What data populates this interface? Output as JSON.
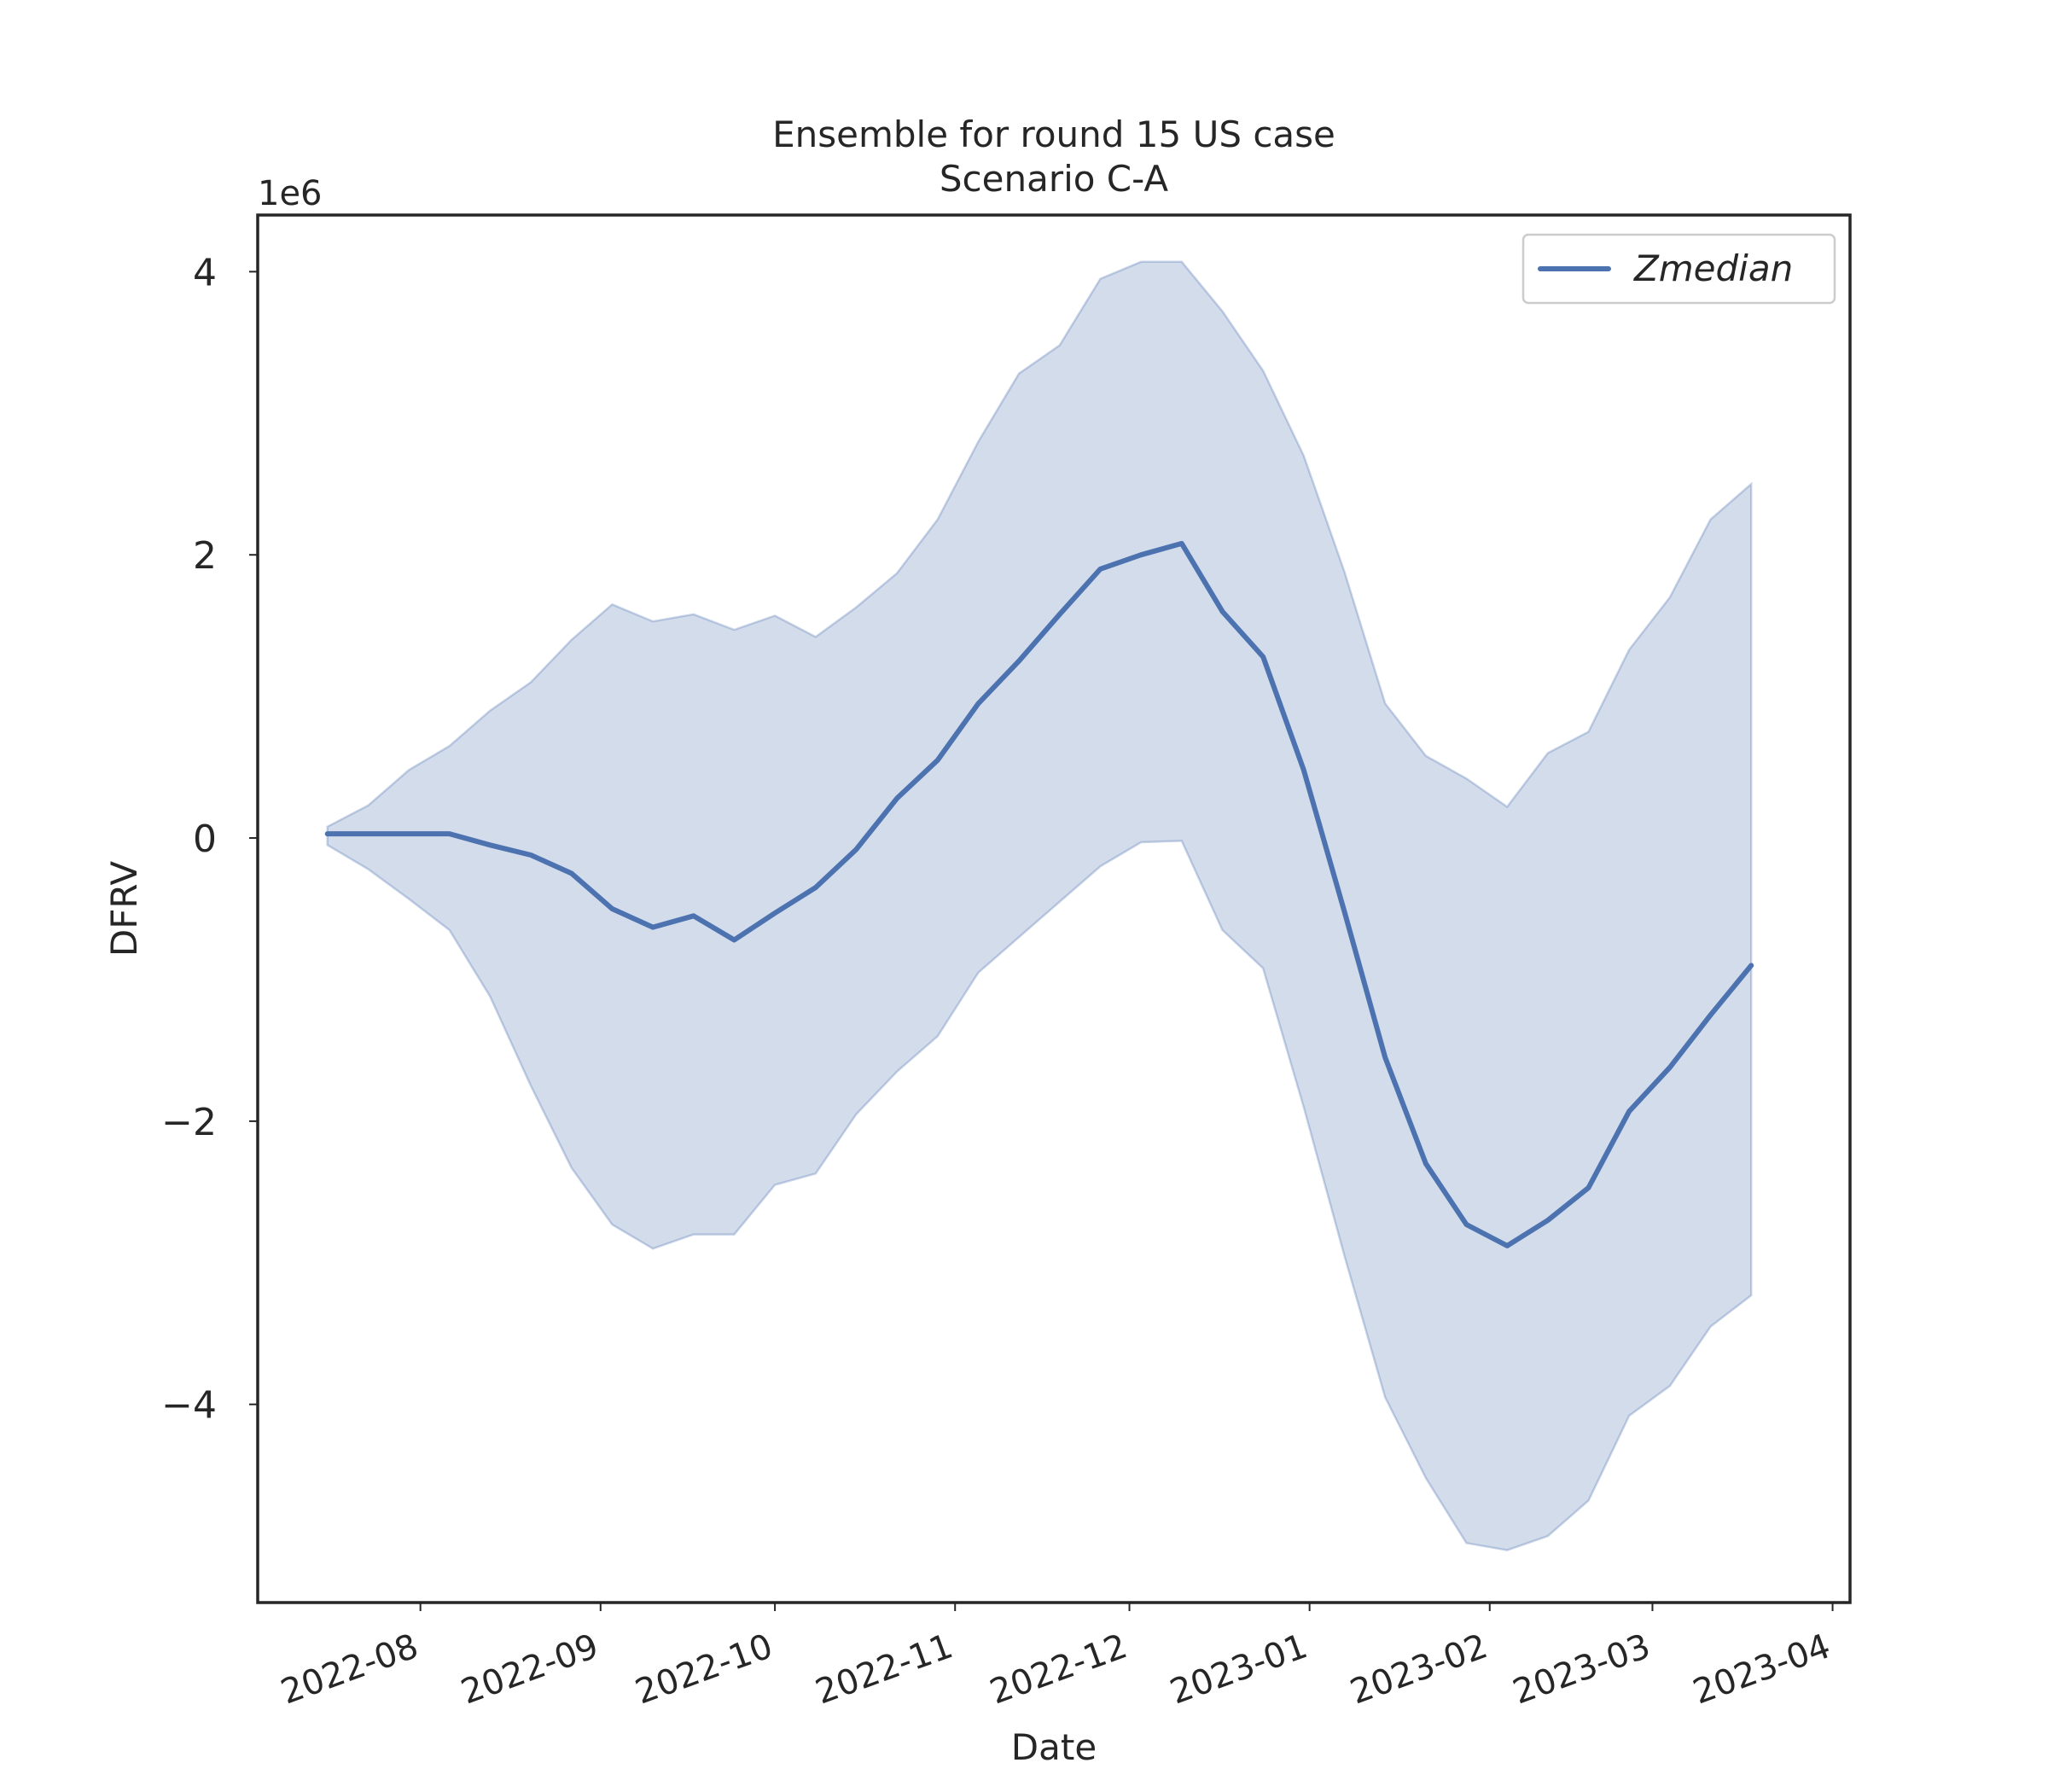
{
  "chart_data": {
    "type": "line",
    "title": "Ensemble for round 15 US case",
    "subtitle": "Scenario C-A",
    "xlabel": "Date",
    "ylabel": "DFRV",
    "y_offset_label": "1e6",
    "x_tick_labels": [
      "2022-08",
      "2022-09",
      "2022-10",
      "2022-11",
      "2022-12",
      "2023-01",
      "2023-02",
      "2023-03",
      "2023-04"
    ],
    "x_ticks": [
      "2022-08-01",
      "2022-09-01",
      "2022-10-01",
      "2022-11-01",
      "2022-12-01",
      "2023-01-01",
      "2023-02-01",
      "2023-03-01",
      "2023-04-01"
    ],
    "y_ticks": [
      -4,
      -2,
      0,
      2,
      4
    ],
    "xlim": [
      "2022-07-04",
      "2023-04-04"
    ],
    "ylim": [
      -5.4,
      4.4
    ],
    "y_scale_factor": 1000000,
    "grid": false,
    "legend_position": "top-right",
    "colors": {
      "line": "#4c72b0",
      "band": "#4c72b0"
    },
    "series": [
      {
        "name": "Zmedian",
        "x": [
          "2022-07-16",
          "2022-07-23",
          "2022-07-30",
          "2022-08-06",
          "2022-08-13",
          "2022-08-20",
          "2022-08-27",
          "2022-09-03",
          "2022-09-10",
          "2022-09-17",
          "2022-09-24",
          "2022-10-01",
          "2022-10-08",
          "2022-10-15",
          "2022-10-22",
          "2022-10-29",
          "2022-11-05",
          "2022-11-12",
          "2022-11-19",
          "2022-11-26",
          "2022-12-03",
          "2022-12-10",
          "2022-12-17",
          "2022-12-24",
          "2022-12-31",
          "2023-01-07",
          "2023-01-14",
          "2023-01-21",
          "2023-01-28",
          "2023-02-04",
          "2023-02-11",
          "2023-02-18",
          "2023-02-25",
          "2023-03-04",
          "2023-03-11",
          "2023-03-18"
        ],
        "y": [
          0.03,
          0.03,
          0.03,
          0.03,
          -0.05,
          -0.12,
          -0.25,
          -0.5,
          -0.63,
          -0.55,
          -0.72,
          -0.53,
          -0.35,
          -0.08,
          0.28,
          0.55,
          0.95,
          1.25,
          1.58,
          1.9,
          2.0,
          2.08,
          1.6,
          1.28,
          0.48,
          -0.52,
          -1.55,
          -2.3,
          -2.73,
          -2.88,
          -2.7,
          -2.47,
          -1.93,
          -1.62,
          -1.25,
          -0.9
        ],
        "lower": [
          -0.05,
          -0.22,
          -0.43,
          -0.65,
          -1.12,
          -1.75,
          -2.33,
          -2.73,
          -2.9,
          -2.8,
          -2.8,
          -2.45,
          -2.37,
          -1.95,
          -1.65,
          -1.4,
          -0.95,
          -0.7,
          -0.45,
          -0.2,
          -0.03,
          -0.02,
          -0.65,
          -0.92,
          -1.9,
          -2.95,
          -3.95,
          -4.52,
          -4.98,
          -5.03,
          -4.93,
          -4.68,
          -4.08,
          -3.87,
          -3.45,
          -3.23
        ],
        "upper": [
          0.08,
          0.23,
          0.48,
          0.65,
          0.9,
          1.1,
          1.4,
          1.65,
          1.53,
          1.58,
          1.47,
          1.57,
          1.42,
          1.63,
          1.87,
          2.25,
          2.8,
          3.28,
          3.48,
          3.95,
          4.07,
          4.07,
          3.72,
          3.3,
          2.7,
          1.88,
          0.95,
          0.58,
          0.42,
          0.22,
          0.6,
          0.75,
          1.33,
          1.7,
          2.25,
          2.5
        ]
      }
    ]
  }
}
